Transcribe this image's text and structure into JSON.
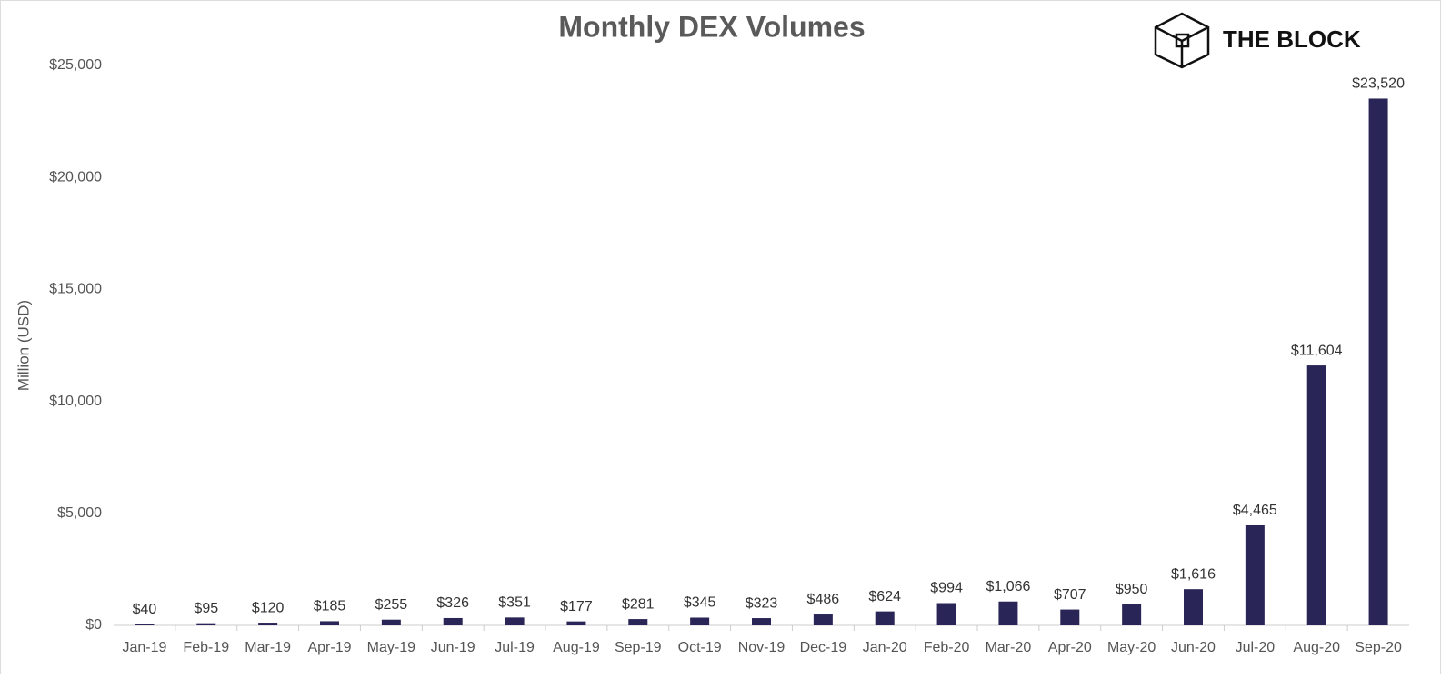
{
  "brand": "THE BLOCK",
  "chart_data": {
    "type": "bar",
    "title": "Monthly DEX Volumes",
    "y_label": "Million (USD)",
    "categories": [
      "Jan-19",
      "Feb-19",
      "Mar-19",
      "Apr-19",
      "May-19",
      "Jun-19",
      "Jul-19",
      "Aug-19",
      "Sep-19",
      "Oct-19",
      "Nov-19",
      "Dec-19",
      "Jan-20",
      "Feb-20",
      "Mar-20",
      "Apr-20",
      "May-20",
      "Jun-20",
      "Jul-20",
      "Aug-20",
      "Sep-20"
    ],
    "values": [
      40,
      95,
      120,
      185,
      255,
      326,
      351,
      177,
      281,
      345,
      323,
      486,
      624,
      994,
      1066,
      707,
      950,
      1616,
      4465,
      11604,
      23520
    ],
    "value_labels": [
      "$40",
      "$95",
      "$120",
      "$185",
      "$255",
      "$326",
      "$351",
      "$177",
      "$281",
      "$345",
      "$323",
      "$486",
      "$624",
      "$994",
      "$1,066",
      "$707",
      "$950",
      "$1,616",
      "$4,465",
      "$11,604",
      "$23,520"
    ],
    "color": "#2a2557",
    "ylim": [
      0,
      25000
    ],
    "yticks": [
      {
        "value": 0,
        "label": "$0"
      },
      {
        "value": 5000,
        "label": "$5,000"
      },
      {
        "value": 10000,
        "label": "$10,000"
      },
      {
        "value": 15000,
        "label": "$15,000"
      },
      {
        "value": 20000,
        "label": "$20,000"
      },
      {
        "value": 25000,
        "label": "$25,000"
      }
    ],
    "grid": false
  }
}
